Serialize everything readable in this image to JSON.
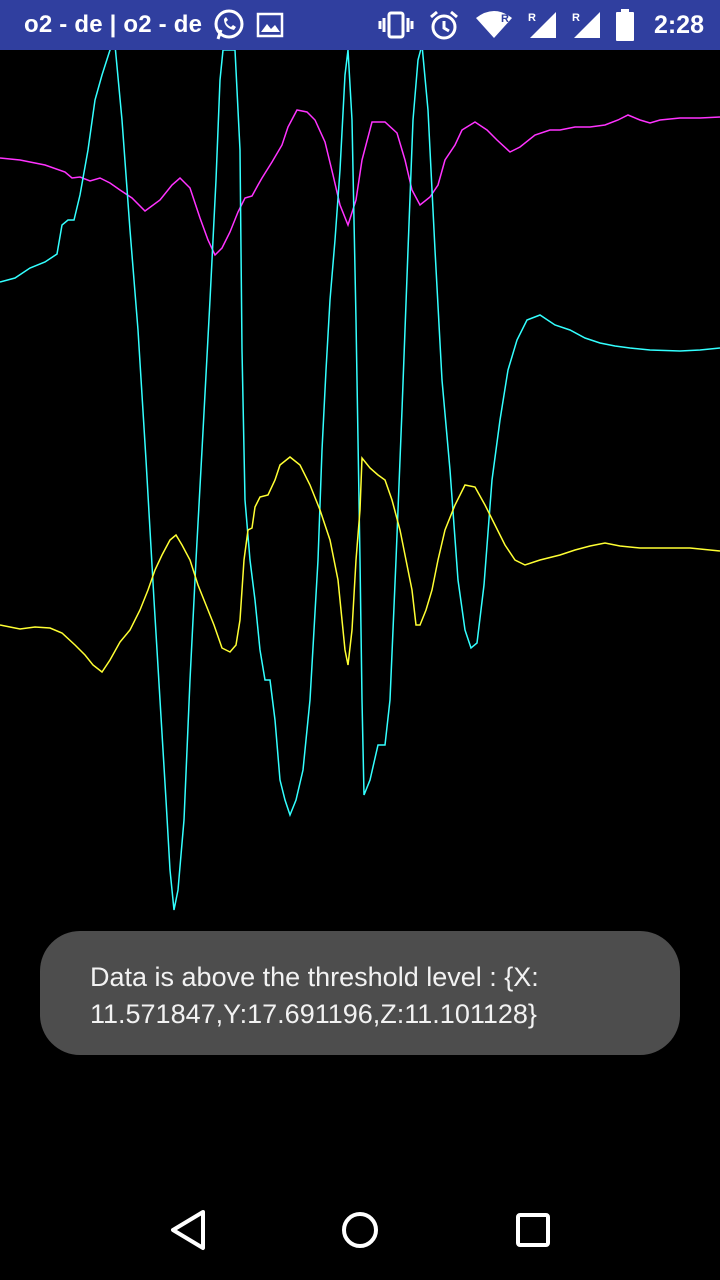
{
  "status_bar": {
    "carrier_text": "o2 - de | o2 - de",
    "time": "2:28",
    "background": "#303F9F",
    "left_icons": [
      "whatsapp-icon",
      "image-icon"
    ],
    "right_icons": [
      "vibrate-icon",
      "alarm-icon",
      "wifi-icon",
      "signal-roaming-icon",
      "signal-roaming-icon",
      "battery-icon"
    ]
  },
  "graph": {
    "background": "#000000",
    "series_colors": {
      "magenta": "#ff33ff",
      "cyan": "#33ffff",
      "yellow": "#ffff33"
    }
  },
  "toast": {
    "line1": "Data is above the threshold level : {X:",
    "line2": "11.571847,Y:17.691196,Z:11.101128}"
  },
  "nav_bar": {
    "icons": [
      "back-icon",
      "home-icon",
      "recents-icon"
    ]
  }
}
